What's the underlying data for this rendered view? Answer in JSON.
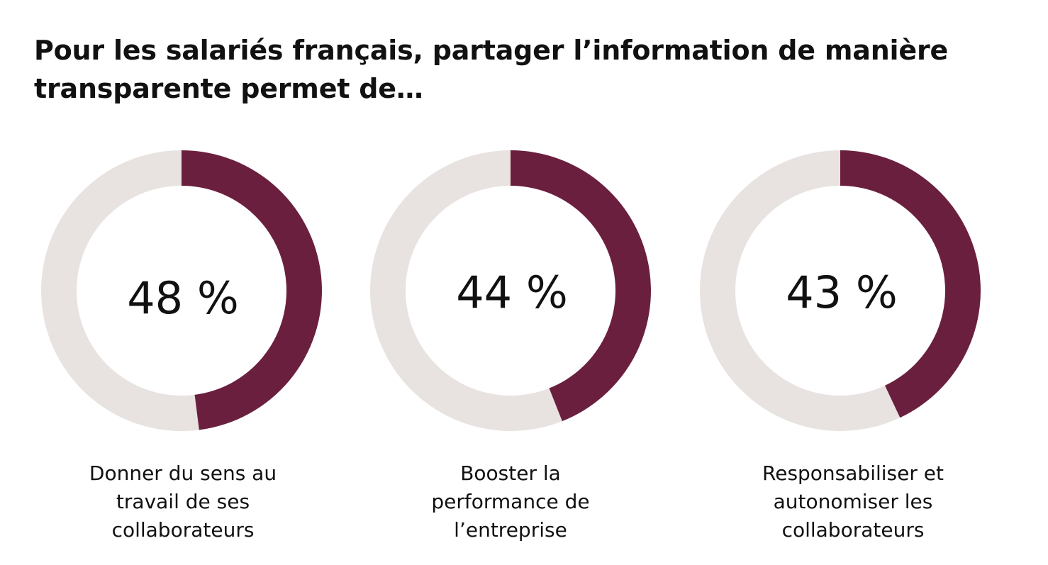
{
  "title": "Pour les salariés français, partager l’information de manière transparente permet de…",
  "colors": {
    "accent": "#6b1f3e",
    "track": "#e8e3e0"
  },
  "chart_data": [
    {
      "type": "pie",
      "value": 48,
      "value_label": "48 %",
      "label": "Donner du sens au\ntravail de ses\ncollaborateurs"
    },
    {
      "type": "pie",
      "value": 44,
      "value_label": "44 %",
      "label": "Booster la\nperformance de\nl’entreprise"
    },
    {
      "type": "pie",
      "value": 43,
      "value_label": "43 %",
      "label": "Responsabiliser et\nautonomiser les\ncollaborateurs"
    }
  ]
}
